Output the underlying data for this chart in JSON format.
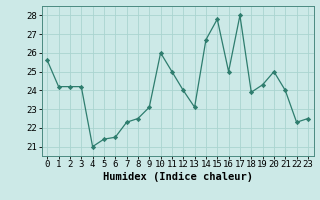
{
  "x": [
    0,
    1,
    2,
    3,
    4,
    5,
    6,
    7,
    8,
    9,
    10,
    11,
    12,
    13,
    14,
    15,
    16,
    17,
    18,
    19,
    20,
    21,
    22,
    23
  ],
  "y": [
    25.6,
    24.2,
    24.2,
    24.2,
    21.0,
    21.4,
    21.5,
    22.3,
    22.5,
    23.1,
    26.0,
    25.0,
    24.0,
    23.1,
    26.7,
    27.8,
    25.0,
    28.0,
    23.9,
    24.3,
    25.0,
    24.0,
    22.3,
    22.5
  ],
  "line_color": "#2e7d6e",
  "marker": "D",
  "marker_size": 2.2,
  "bg_color": "#cce9e7",
  "grid_color": "#aad4d0",
  "xlabel": "Humidex (Indice chaleur)",
  "ylim": [
    20.5,
    28.5
  ],
  "yticks": [
    21,
    22,
    23,
    24,
    25,
    26,
    27,
    28
  ],
  "xticks": [
    0,
    1,
    2,
    3,
    4,
    5,
    6,
    7,
    8,
    9,
    10,
    11,
    12,
    13,
    14,
    15,
    16,
    17,
    18,
    19,
    20,
    21,
    22,
    23
  ],
  "xlabel_fontsize": 7.5,
  "tick_fontsize": 6.5,
  "xlim": [
    -0.5,
    23.5
  ]
}
